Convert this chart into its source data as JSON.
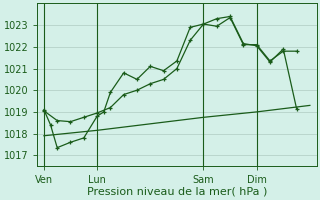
{
  "bg_color": "#d4f0e8",
  "grid_color_major": "#b8d8cc",
  "grid_color_minor": "#c8e4da",
  "line_color": "#1a5c1a",
  "xlabel": "Pression niveau de la mer( hPa )",
  "ylim": [
    1016.5,
    1024.0
  ],
  "yticks": [
    1017,
    1018,
    1019,
    1020,
    1021,
    1022,
    1023
  ],
  "xlabel_fontsize": 8,
  "ytick_fontsize": 7,
  "xtick_fontsize": 7,
  "xtick_labels": [
    "Ven",
    "Lun",
    "Sam",
    "Dim"
  ],
  "xtick_positions": [
    2,
    18,
    50,
    66
  ],
  "total_x_points": 84,
  "xlim": [
    0,
    84
  ],
  "series1_x": [
    2,
    4,
    6,
    10,
    14,
    18,
    20,
    22,
    26,
    30,
    34,
    38,
    42,
    46,
    50,
    54,
    58,
    62,
    66,
    70,
    74,
    78
  ],
  "series1_y": [
    1019.1,
    1018.4,
    1017.35,
    1017.6,
    1017.8,
    1018.8,
    1019.0,
    1019.9,
    1020.8,
    1020.5,
    1021.1,
    1020.9,
    1021.35,
    1022.9,
    1023.05,
    1022.95,
    1023.35,
    1022.1,
    1022.1,
    1021.35,
    1021.8,
    1021.8
  ],
  "series2_x": [
    2,
    6,
    10,
    14,
    18,
    22,
    26,
    30,
    34,
    38,
    42,
    46,
    50,
    54,
    58,
    62,
    66,
    70,
    74,
    78
  ],
  "series2_y": [
    1019.05,
    1018.6,
    1018.55,
    1018.75,
    1018.95,
    1019.2,
    1019.8,
    1020.0,
    1020.3,
    1020.5,
    1021.0,
    1022.3,
    1023.05,
    1023.3,
    1023.4,
    1022.15,
    1022.05,
    1021.3,
    1021.9,
    1019.15
  ],
  "series3_x": [
    2,
    18,
    34,
    50,
    66,
    82
  ],
  "series3_y": [
    1017.9,
    1018.15,
    1018.45,
    1018.75,
    1019.0,
    1019.3
  ],
  "vline_x": [
    2,
    18,
    50,
    66
  ]
}
